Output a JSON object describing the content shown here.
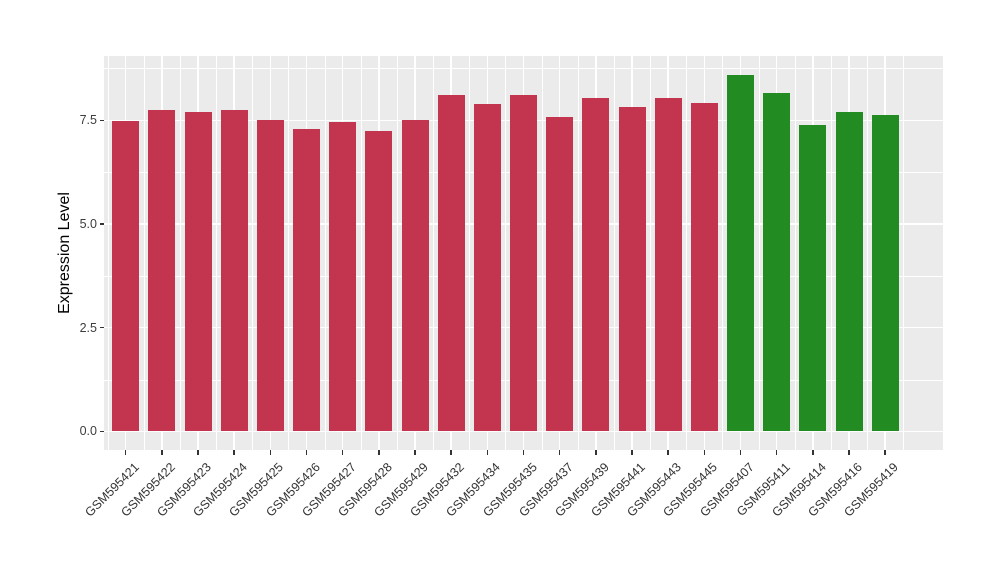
{
  "figure": {
    "background_color": "#ffffff",
    "panel_background_color": "#ebebeb",
    "gridline_color": "#ffffff",
    "axis_text_color": "#3d3d3d",
    "axis_title_color": "#000000",
    "tick_mark_color": "#333333",
    "bar_color_group1": "#c3344f",
    "bar_color_group2": "#228b22"
  },
  "chart_data": {
    "type": "bar",
    "title": "",
    "xlabel": "",
    "ylabel": "Expression Level",
    "ylim": [
      0,
      9.05
    ],
    "yticks": [
      0.0,
      2.5,
      5.0,
      7.5
    ],
    "ytick_labels": [
      "0.0",
      "2.5",
      "5.0",
      "7.5"
    ],
    "yminor_gridlines": [
      1.25,
      3.75,
      6.25,
      8.75
    ],
    "grid": true,
    "legend_position": "none",
    "x_tick_label_rotation_deg": 45,
    "categories": [
      "GSM595421",
      "GSM595422",
      "GSM595423",
      "GSM595424",
      "GSM595425",
      "GSM595426",
      "GSM595427",
      "GSM595428",
      "GSM595429",
      "GSM595432",
      "GSM595434",
      "GSM595435",
      "GSM595437",
      "GSM595439",
      "GSM595441",
      "GSM595443",
      "GSM595445",
      "GSM595407",
      "GSM595411",
      "GSM595414",
      "GSM595416",
      "GSM595419"
    ],
    "values": [
      7.48,
      7.76,
      7.7,
      7.74,
      7.5,
      7.3,
      7.45,
      7.24,
      7.5,
      8.1,
      7.9,
      8.1,
      7.59,
      8.05,
      7.81,
      8.05,
      7.92,
      8.6,
      8.17,
      7.39,
      7.71,
      7.64
    ],
    "bar_colors": [
      "#c3344f",
      "#c3344f",
      "#c3344f",
      "#c3344f",
      "#c3344f",
      "#c3344f",
      "#c3344f",
      "#c3344f",
      "#c3344f",
      "#c3344f",
      "#c3344f",
      "#c3344f",
      "#c3344f",
      "#c3344f",
      "#c3344f",
      "#c3344f",
      "#c3344f",
      "#228b22",
      "#228b22",
      "#228b22",
      "#228b22",
      "#228b22"
    ]
  }
}
